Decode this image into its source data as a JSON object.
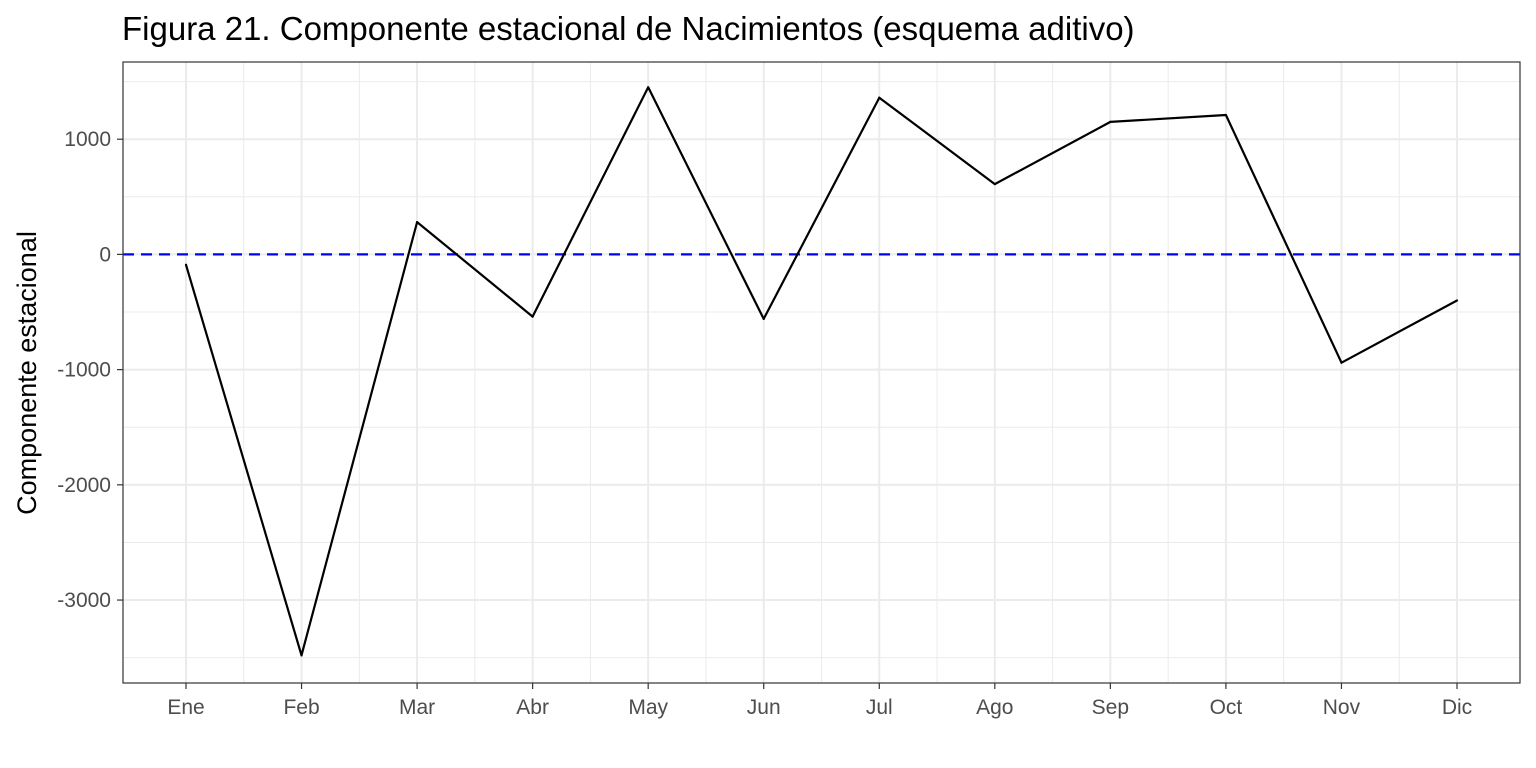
{
  "chart_data": {
    "type": "line",
    "title": "Figura 21. Componente estacional de Nacimientos (esquema aditivo)",
    "xlabel": "",
    "ylabel": "Componente estacional",
    "categories": [
      "Ene",
      "Feb",
      "Mar",
      "Abr",
      "May",
      "Jun",
      "Jul",
      "Ago",
      "Sep",
      "Oct",
      "Nov",
      "Dic"
    ],
    "series": [
      {
        "values": [
          -90,
          -3480,
          280,
          -540,
          1450,
          -560,
          1360,
          610,
          1150,
          1210,
          -940,
          -400
        ]
      }
    ],
    "reference_line": {
      "y": 0,
      "style": "dashed",
      "color": "#0000ff"
    },
    "yticks": [
      1000,
      0,
      -1000,
      -2000,
      -3000
    ],
    "ytick_labels": [
      "1000",
      "0",
      "-1000",
      "-2000",
      "-3000"
    ],
    "ylim": [
      -3720,
      1670
    ],
    "grid": true,
    "colors": {
      "line": "#000000",
      "reference": "#0000ff",
      "grid": "#ebebeb",
      "panel_border": "#333333"
    }
  }
}
